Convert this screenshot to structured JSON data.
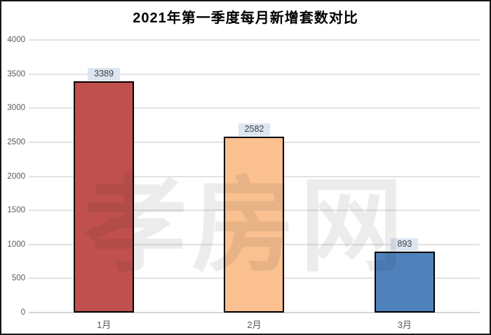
{
  "title": "2021年第一季度每月新增套数对比",
  "watermark": "孝房网",
  "chart_data": {
    "type": "bar",
    "title": "2021年第一季度每月新增套数对比",
    "categories": [
      "1月",
      "2月",
      "3月"
    ],
    "values": [
      3389,
      2582,
      893
    ],
    "data_labels": [
      "3389",
      "2582",
      "893"
    ],
    "bar_colors": [
      "#c0504d",
      "#fac090",
      "#4f81bd"
    ],
    "bar_border_color": "#000000",
    "label_box_fill": "#dce6f1",
    "label_text_color": "#404040",
    "xlabel": "",
    "ylabel": "",
    "ylim": [
      0,
      4000
    ],
    "yticks": [
      0,
      500,
      1000,
      1500,
      2000,
      2500,
      3000,
      3500,
      4000
    ],
    "grid": true,
    "legend": "none"
  }
}
